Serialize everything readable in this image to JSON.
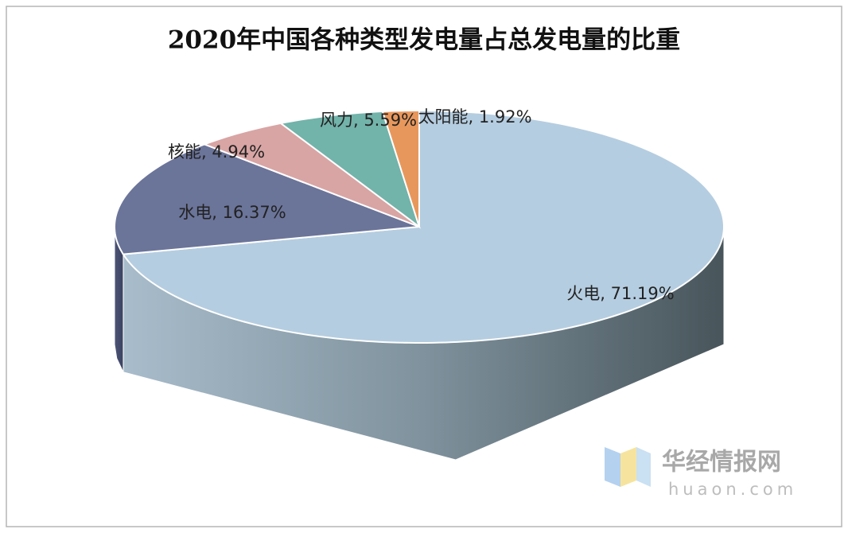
{
  "chart_data": {
    "type": "pie3d",
    "title": "2020年中国各种类型发电量占总发电量的比重",
    "categories": [
      "火电",
      "水电",
      "核能",
      "风力",
      "太阳能"
    ],
    "values": [
      71.19,
      16.37,
      4.94,
      5.59,
      1.92
    ],
    "value_labels": [
      "火电, 71.19%",
      "水电, 16.37%",
      "核能, 4.94%",
      "风力, 5.59%",
      "太阳能, 1.92%"
    ],
    "colors": [
      "#b5cde0",
      "#6b7499",
      "#d8a5a4",
      "#72b3aa",
      "#e8975c"
    ]
  },
  "watermark": {
    "name": "华经情报网",
    "url": "huaon.com"
  }
}
